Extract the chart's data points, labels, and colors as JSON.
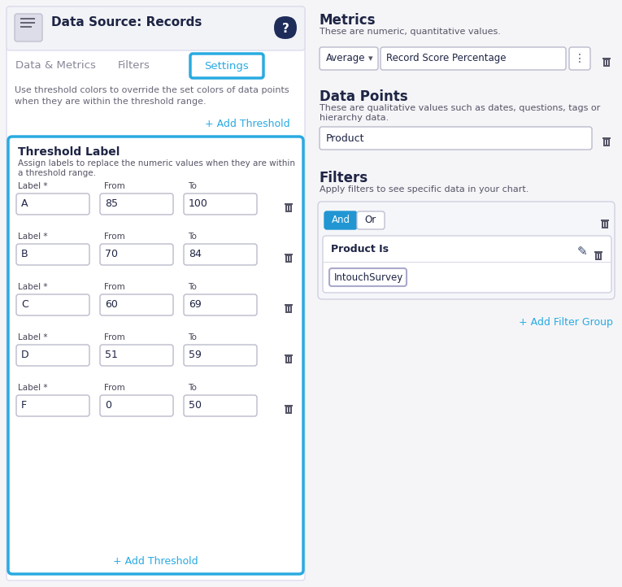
{
  "colors": {
    "blue": "#29aae1",
    "dark": "#1e2444",
    "mid": "#555566",
    "light": "#888899",
    "border": "#ccccdd",
    "light_border": "#ddddee",
    "input_border": "#bbbbcc",
    "bg": "#f0f2f5",
    "white": "#ffffff",
    "header_bg": "#f2f3f7",
    "filter_bg": "#f0f2f5",
    "trash": "#555566",
    "and_bg": "#2196d3"
  },
  "left": {
    "header_title": "Data Source: Records",
    "tabs": [
      "Data & Metrics",
      "Filters",
      "Settings"
    ],
    "subtext1": "Use threshold colors to override the set colors of data points",
    "subtext2": "when they are within the threshold range.",
    "add_threshold": "+ Add Threshold",
    "box_title": "Threshold Label",
    "box_desc1": "Assign labels to replace the numeric values when they are within",
    "box_desc2": "a threshold range.",
    "rows": [
      {
        "label": "A",
        "from": "85",
        "to": "100"
      },
      {
        "label": "B",
        "from": "70",
        "to": "84"
      },
      {
        "label": "C",
        "from": "60",
        "to": "69"
      },
      {
        "label": "D",
        "from": "51",
        "to": "59"
      },
      {
        "label": "F",
        "from": "0",
        "to": "50"
      }
    ]
  },
  "right": {
    "metrics_title": "Metrics",
    "metrics_desc": "These are numeric, quantitative values.",
    "metrics_dropdown": "Average",
    "metrics_field": "Record Score Percentage",
    "dp_title": "Data Points",
    "dp_desc1": "These are qualitative values such as dates, questions, tags or",
    "dp_desc2": "hierarchy data.",
    "dp_field": "Product",
    "filters_title": "Filters",
    "filters_desc": "Apply filters to see specific data in your chart.",
    "filter_name": "Product Is",
    "filter_value": "IntouchSurvey",
    "add_filter_group": "+ Add Filter Group"
  }
}
